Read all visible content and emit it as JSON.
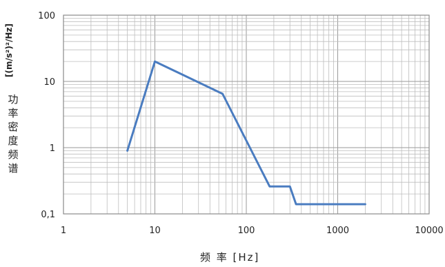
{
  "chart_data": {
    "type": "line",
    "title": "",
    "xlabel": "频 率 [Hz]",
    "ylabel_unit": "[(m/s²)²/Hz]",
    "ylabel": "功率密度频谱",
    "x_scale": "log",
    "y_scale": "log",
    "xlim": [
      1,
      10000
    ],
    "ylim": [
      0.1,
      100
    ],
    "x_ticks": [
      "1",
      "10",
      "100",
      "1000",
      "10000"
    ],
    "y_ticks": [
      "100",
      "10",
      "1",
      "0,1"
    ],
    "grid": true,
    "series": [
      {
        "color": "#4a7cc0",
        "points": [
          [
            5,
            0.9
          ],
          [
            10,
            20
          ],
          [
            55,
            6.5
          ],
          [
            180,
            0.26
          ],
          [
            300,
            0.26
          ],
          [
            350,
            0.14
          ],
          [
            2000,
            0.14
          ]
        ]
      }
    ]
  }
}
